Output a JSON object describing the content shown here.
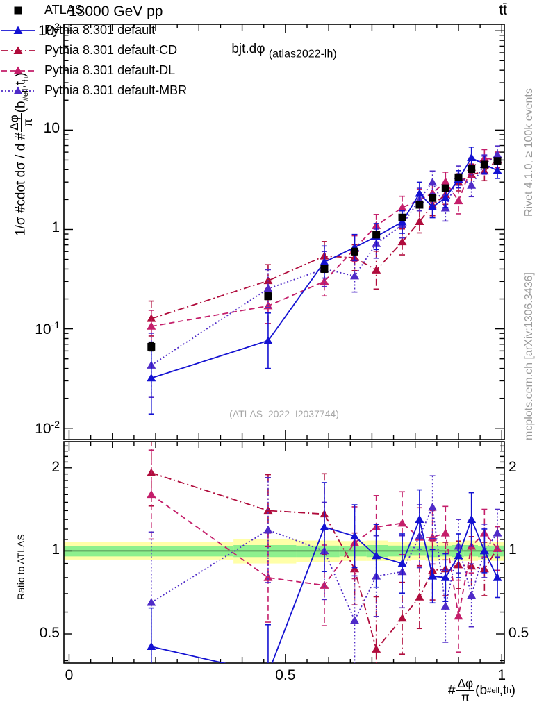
{
  "header": {
    "left": "13000 GeV pp",
    "right": "tt̄"
  },
  "panel_title": {
    "main": "bjt.dφ",
    "sub": "(atlas2022-lh)"
  },
  "watermark": "(ATLAS_2022_I2037744)",
  "side_notes": {
    "top": "Rivet 4.1.0, ≥ 100k events",
    "bottom": "mcplots.cern.ch [arXiv:1306.3436]"
  },
  "ylabel_main": {
    "prefix": "1/σ #cdot dσ / d #",
    "frac_num": "Δφ",
    "frac_den": "π",
    "arg_open": "(b",
    "arg_sub1": "#ell",
    "arg_mid": ",t",
    "arg_sub2": "h",
    "arg_close": ")"
  },
  "xlabel": {
    "prefix": "#",
    "frac_num": "Δφ",
    "frac_den": "π",
    "arg_open": "(b",
    "arg_sub1": "#ell",
    "arg_mid": ",t",
    "arg_sub2": "h",
    "arg_close": ")"
  },
  "ratio_ylabel": "Ratio to ATLAS",
  "legend": [
    {
      "label": "ATLAS"
    },
    {
      "label": "Pythia 8.301 default"
    },
    {
      "label": "Pythia 8.301 default-CD"
    },
    {
      "label": "Pythia 8.301 default-DL"
    },
    {
      "label": "Pythia 8.301 default-MBR"
    }
  ],
  "colors": {
    "atlas": "#000000",
    "default": "#1412d2",
    "cd": "#b00c3c",
    "dl": "#c41e6a",
    "mbr": "#4f2bc8",
    "gray_text": "#9b9b9b",
    "band_yellow": "#ffffa8",
    "band_green": "#8df08d",
    "frame": "#000000"
  },
  "chart_data": {
    "type": "line",
    "title": "bjt.dφ (atlas2022-lh)",
    "xlabel": "#Δφ/π(b_#ell,t_h)",
    "xlim": [
      -0.012,
      1.006
    ],
    "x": [
      0.19,
      0.46,
      0.59,
      0.66,
      0.71,
      0.77,
      0.81,
      0.84,
      0.87,
      0.9,
      0.93,
      0.96,
      0.99
    ],
    "xticks": {
      "major": [
        0,
        0.5,
        1
      ],
      "labels": [
        "0",
        "0.5",
        "1"
      ],
      "minor_step": 0.05
    },
    "main_panel": {
      "ylabel": "1/σ #cdot dσ / d #Δφ/π(b_#ell,t_h)",
      "yscale": "log",
      "ylim": [
        0.0077,
        116
      ],
      "yticks": {
        "major": [
          0.01,
          0.1,
          1,
          10,
          100
        ],
        "labels": [
          {
            "b": "10",
            "e": "-2"
          },
          {
            "b": "10",
            "e": "-1"
          },
          {
            "b": "1",
            "e": ""
          },
          {
            "b": "10",
            "e": ""
          },
          {
            "b": "10",
            "e": "2"
          }
        ]
      }
    },
    "ratio_panel": {
      "ylabel": "Ratio to ATLAS",
      "yscale": "log",
      "ylim": [
        0.392,
        2.49
      ],
      "reference_line": 1,
      "yticks": {
        "major": [
          0.5,
          1,
          2
        ],
        "labels": [
          "0.5",
          "1",
          "2"
        ]
      },
      "band_yellow": [
        [
          -0.012,
          0.38,
          0.93,
          1.075
        ],
        [
          0.38,
          0.525,
          0.9,
          1.1
        ],
        [
          0.525,
          0.625,
          0.91,
          1.09
        ],
        [
          0.625,
          0.6875,
          0.92,
          1.085
        ],
        [
          0.6875,
          0.7375,
          0.92,
          1.09
        ],
        [
          0.7375,
          0.79,
          0.92,
          1.08
        ],
        [
          0.79,
          0.825,
          0.93,
          1.075
        ],
        [
          0.825,
          0.855,
          0.92,
          1.08
        ],
        [
          0.855,
          0.885,
          0.93,
          1.075
        ],
        [
          0.885,
          0.9125,
          0.92,
          1.08
        ],
        [
          0.9125,
          0.945,
          0.92,
          1.09
        ],
        [
          0.945,
          0.97,
          0.93,
          1.075
        ],
        [
          0.97,
          1.006,
          0.92,
          1.08
        ]
      ],
      "band_green": [
        [
          -0.012,
          0.38,
          0.955,
          1.04
        ],
        [
          0.38,
          0.525,
          0.95,
          1.05
        ],
        [
          0.525,
          0.625,
          0.95,
          1.045
        ],
        [
          0.625,
          0.6875,
          0.955,
          1.04
        ],
        [
          0.6875,
          0.7375,
          0.95,
          1.05
        ],
        [
          0.7375,
          0.79,
          0.955,
          1.045
        ],
        [
          0.79,
          0.825,
          0.96,
          1.04
        ],
        [
          0.825,
          0.855,
          0.95,
          1.045
        ],
        [
          0.855,
          0.885,
          0.955,
          1.045
        ],
        [
          0.885,
          0.9125,
          0.95,
          1.05
        ],
        [
          0.9125,
          0.945,
          0.955,
          1.05
        ],
        [
          0.945,
          0.97,
          0.95,
          1.04
        ],
        [
          0.97,
          1.006,
          0.955,
          1.045
        ]
      ]
    },
    "series": [
      {
        "name": "ATLAS",
        "color_key": "atlas",
        "marker": "square",
        "line": "none",
        "values": [
          0.066,
          0.213,
          0.4,
          0.6,
          0.89,
          1.32,
          1.77,
          2.07,
          2.6,
          3.35,
          4.05,
          4.5,
          4.9
        ],
        "err": [
          0.1,
          0.08,
          0.08,
          0.08,
          0.08,
          0.07,
          0.07,
          0.07,
          0.06,
          0.06,
          0.06,
          0.06,
          0.06
        ]
      },
      {
        "name": "Pythia 8.301 default",
        "color_key": "default",
        "marker": "triangle",
        "line": "solid",
        "values": [
          0.032,
          0.076,
          0.47,
          0.66,
          0.85,
          1.19,
          2.3,
          1.68,
          2.08,
          3.2,
          5.27,
          4.5,
          3.92
        ],
        "err": [
          1.3,
          0.9,
          0.45,
          0.35,
          0.35,
          0.3,
          0.3,
          0.28,
          0.25,
          0.22,
          0.28,
          0.22,
          0.2
        ],
        "ratio": [
          0.45,
          0.36,
          1.22,
          1.13,
          0.96,
          0.9,
          1.3,
          0.81,
          0.8,
          0.96,
          1.3,
          1.0,
          0.8
        ],
        "ratio_err": [
          0.38,
          0.5,
          0.45,
          0.3,
          0.3,
          0.28,
          0.28,
          0.25,
          0.22,
          0.2,
          0.25,
          0.2,
          0.18
        ]
      },
      {
        "name": "Pythia 8.301 default-CD",
        "color_key": "cd",
        "marker": "triangle",
        "line": "dashdot",
        "values": [
          0.127,
          0.305,
          0.54,
          0.52,
          0.39,
          0.75,
          1.2,
          1.76,
          2.24,
          2.98,
          3.56,
          3.87,
          5.0
        ],
        "err": [
          0.5,
          0.45,
          0.4,
          0.35,
          0.55,
          0.35,
          0.3,
          0.28,
          0.25,
          0.22,
          0.28,
          0.25,
          0.2
        ],
        "ratio": [
          1.92,
          1.4,
          1.36,
          0.86,
          0.44,
          0.57,
          0.68,
          0.85,
          0.86,
          0.89,
          0.88,
          0.86,
          1.02
        ],
        "ratio_err": [
          0.32,
          0.35,
          0.4,
          0.35,
          0.55,
          0.35,
          0.3,
          0.28,
          0.25,
          0.22,
          0.28,
          0.25,
          0.2
        ]
      },
      {
        "name": "Pythia 8.301 default-DL",
        "color_key": "dl",
        "marker": "triangle",
        "line": "dashed",
        "values": [
          0.106,
          0.17,
          0.3,
          0.64,
          1.09,
          1.66,
          1.98,
          2.32,
          3.02,
          1.94,
          4.21,
          5.22,
          5.0
        ],
        "err": [
          0.45,
          0.5,
          0.4,
          0.35,
          0.3,
          0.3,
          0.28,
          0.25,
          0.25,
          0.35,
          0.25,
          0.22,
          0.2
        ],
        "ratio": [
          1.6,
          0.8,
          0.75,
          1.07,
          1.22,
          1.26,
          1.12,
          1.12,
          1.16,
          0.58,
          1.04,
          1.16,
          1.02
        ],
        "ratio_err": [
          0.45,
          0.45,
          0.4,
          0.35,
          0.3,
          0.3,
          0.28,
          0.25,
          0.25,
          0.35,
          0.25,
          0.22,
          0.2
        ]
      },
      {
        "name": "Pythia 8.301 default-MBR",
        "color_key": "mbr",
        "marker": "triangle",
        "line": "dotted",
        "values": [
          0.043,
          0.254,
          0.4,
          0.34,
          0.72,
          1.11,
          2.0,
          2.98,
          1.64,
          3.48,
          2.78,
          4.5,
          5.68
        ],
        "err": [
          1.1,
          0.55,
          0.5,
          0.45,
          0.4,
          0.35,
          0.3,
          0.3,
          0.35,
          0.25,
          0.3,
          0.25,
          0.22
        ],
        "ratio": [
          0.65,
          1.19,
          1.0,
          0.56,
          0.81,
          0.84,
          1.13,
          1.44,
          0.63,
          1.04,
          0.69,
          1.0,
          1.16
        ],
        "ratio_err": [
          0.8,
          0.55,
          0.5,
          0.45,
          0.4,
          0.35,
          0.3,
          0.3,
          0.35,
          0.25,
          0.3,
          0.25,
          0.22
        ]
      }
    ]
  }
}
